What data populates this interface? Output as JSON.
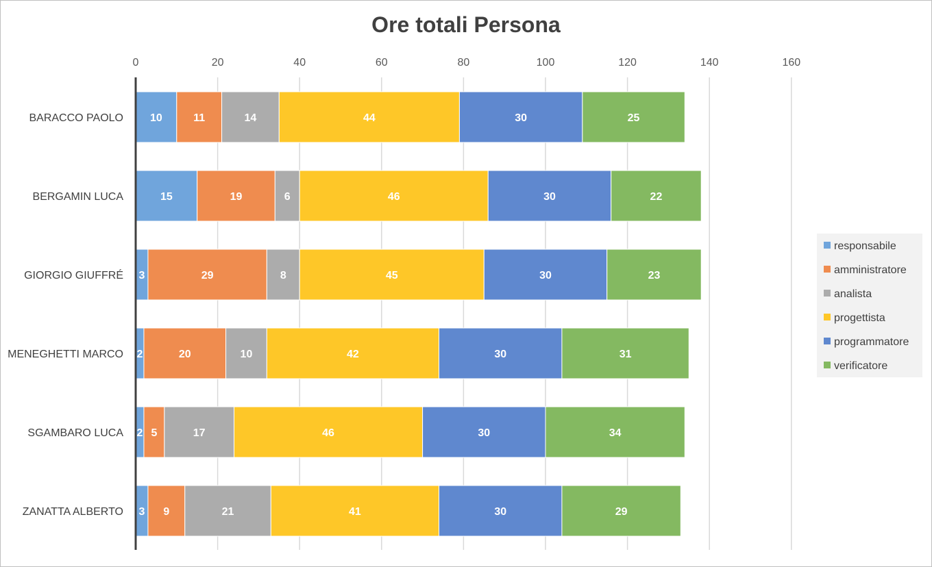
{
  "chart_data": {
    "type": "bar",
    "orientation": "horizontal",
    "stacked": true,
    "title": "Ore totali Persona",
    "xlim": [
      0,
      160
    ],
    "x_ticks": [
      0,
      20,
      40,
      60,
      80,
      100,
      120,
      140,
      160
    ],
    "axis_position": "top",
    "grid": true,
    "legend": "right",
    "categories": [
      "BARACCO PAOLO",
      "BERGAMIN LUCA",
      "GIORGIO GIUFFRÉ",
      "MENEGHETTI MARCO",
      "SGAMBARO LUCA",
      "ZANATTA ALBERTO"
    ],
    "series": [
      {
        "name": "responsabile",
        "color": "#70a5dc",
        "values": [
          10,
          15,
          3,
          2,
          2,
          3
        ]
      },
      {
        "name": "amministratore",
        "color": "#ef8c4f",
        "values": [
          11,
          19,
          29,
          20,
          5,
          9
        ]
      },
      {
        "name": "analista",
        "color": "#acacac",
        "values": [
          14,
          6,
          8,
          10,
          17,
          21
        ]
      },
      {
        "name": "progettista",
        "color": "#fec728",
        "values": [
          44,
          46,
          45,
          42,
          46,
          41
        ]
      },
      {
        "name": "programmatore",
        "color": "#5f88cf",
        "values": [
          30,
          30,
          30,
          30,
          30,
          30
        ]
      },
      {
        "name": "verificatore",
        "color": "#84b961",
        "values": [
          25,
          22,
          23,
          31,
          34,
          29
        ]
      }
    ]
  }
}
